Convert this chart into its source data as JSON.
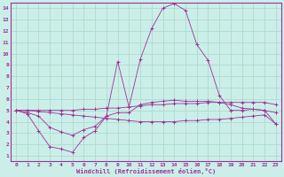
{
  "xlabel": "Windchill (Refroidissement éolien,°C)",
  "background_color": "#cceee8",
  "grid_color": "#aaddcc",
  "line_color": "#993399",
  "spine_color": "#993399",
  "xlim": [
    -0.5,
    23.5
  ],
  "ylim": [
    0.5,
    14.5
  ],
  "xticks": [
    0,
    1,
    2,
    3,
    4,
    5,
    6,
    7,
    8,
    9,
    10,
    11,
    12,
    13,
    14,
    15,
    16,
    17,
    18,
    19,
    20,
    21,
    22,
    23
  ],
  "yticks": [
    1,
    2,
    3,
    4,
    5,
    6,
    7,
    8,
    9,
    10,
    11,
    12,
    13,
    14
  ],
  "lines": [
    {
      "x": [
        0,
        1,
        2,
        3,
        4,
        5,
        6,
        7,
        8,
        9,
        10,
        11,
        12,
        13,
        14,
        15,
        16,
        17,
        18,
        19,
        20,
        21,
        22,
        23
      ],
      "y": [
        5.0,
        4.7,
        3.2,
        1.8,
        1.6,
        1.3,
        2.6,
        3.2,
        4.5,
        9.3,
        5.3,
        9.5,
        12.2,
        14.0,
        14.4,
        13.8,
        10.8,
        9.4,
        6.3,
        5.0,
        5.0,
        5.1,
        5.0,
        4.8
      ]
    },
    {
      "x": [
        0,
        1,
        2,
        3,
        4,
        5,
        6,
        7,
        8,
        9,
        10,
        11,
        12,
        13,
        14,
        15,
        16,
        17,
        18,
        19,
        20,
        21,
        22,
        23
      ],
      "y": [
        5.0,
        4.8,
        4.5,
        3.5,
        3.1,
        2.8,
        3.3,
        3.6,
        4.5,
        4.8,
        4.8,
        5.5,
        5.7,
        5.8,
        5.9,
        5.8,
        5.8,
        5.8,
        5.7,
        5.5,
        5.2,
        5.1,
        5.0,
        3.8
      ]
    },
    {
      "x": [
        0,
        1,
        2,
        3,
        4,
        5,
        6,
        7,
        8,
        9,
        10,
        11,
        12,
        13,
        14,
        15,
        16,
        17,
        18,
        19,
        20,
        21,
        22,
        23
      ],
      "y": [
        5.0,
        5.0,
        4.9,
        4.8,
        4.7,
        4.6,
        4.5,
        4.4,
        4.3,
        4.2,
        4.1,
        4.0,
        4.0,
        4.0,
        4.0,
        4.1,
        4.1,
        4.2,
        4.2,
        4.3,
        4.4,
        4.5,
        4.6,
        3.8
      ]
    },
    {
      "x": [
        0,
        1,
        2,
        3,
        4,
        5,
        6,
        7,
        8,
        9,
        10,
        11,
        12,
        13,
        14,
        15,
        16,
        17,
        18,
        19,
        20,
        21,
        22,
        23
      ],
      "y": [
        5.0,
        5.0,
        5.0,
        5.0,
        5.0,
        5.0,
        5.1,
        5.1,
        5.2,
        5.2,
        5.3,
        5.4,
        5.5,
        5.5,
        5.6,
        5.6,
        5.6,
        5.7,
        5.7,
        5.7,
        5.7,
        5.7,
        5.7,
        5.5
      ]
    }
  ]
}
